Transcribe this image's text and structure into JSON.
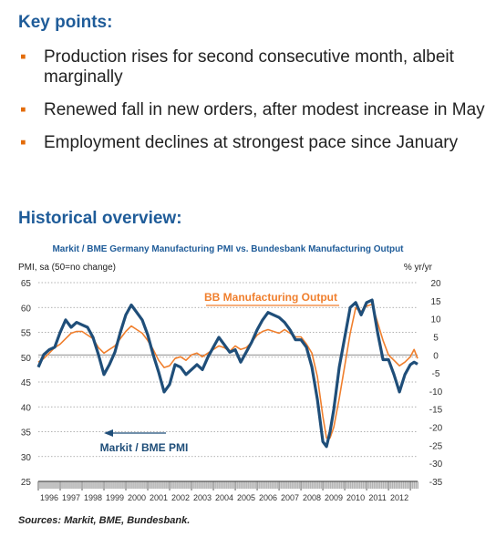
{
  "headings": {
    "key_points": "Key points:",
    "historical": "Historical overview:"
  },
  "bullets": [
    "Production rises for second consecutive month, albeit marginally",
    "Renewed fall in new orders, after modest increase in May",
    "Employment declines at strongest pace since January"
  ],
  "bullet_marker": "▪",
  "colors": {
    "heading": "#1f5c99",
    "marker": "#e36c0a",
    "pmi": "#1f4e79",
    "bb": "#f07f2d",
    "chart_title": "#1f5c99"
  },
  "chart_data": {
    "type": "line",
    "title": "Markit / BME Germany Manufacturing PMI vs. Bundesbank Manufacturing Output",
    "left_axis_label": "PMI, sa (50=no change)",
    "right_axis_label": "% yr/yr",
    "left_ylim": [
      25,
      65
    ],
    "left_ticks": [
      "65",
      "60",
      "55",
      "50",
      "45",
      "40",
      "35",
      "30",
      "25"
    ],
    "right_ylim": [
      -35,
      20
    ],
    "right_ticks": [
      "20",
      "15",
      "10",
      "5",
      "0",
      "-5",
      "-10",
      "-15",
      "-20",
      "-25",
      "-30",
      "-35"
    ],
    "x_ticks": [
      "1996",
      "1997",
      "1998",
      "1999",
      "2000",
      "2001",
      "2002",
      "2003",
      "2004",
      "2005",
      "2006",
      "2007",
      "2008",
      "2009",
      "2010",
      "2011",
      "2012"
    ],
    "x_range": [
      1996.0,
      2013.33
    ],
    "gridlines": "dotted horizontal",
    "series": [
      {
        "name": "Markit / BME PMI",
        "axis": "left",
        "legend_position": "lower-left with left arrow",
        "points": [
          [
            1996.0,
            48.0
          ],
          [
            1996.25,
            50.5
          ],
          [
            1996.5,
            51.5
          ],
          [
            1996.75,
            52.0
          ],
          [
            1997.0,
            55.0
          ],
          [
            1997.25,
            57.5
          ],
          [
            1997.5,
            56.0
          ],
          [
            1997.75,
            57.0
          ],
          [
            1998.0,
            56.5
          ],
          [
            1998.25,
            56.0
          ],
          [
            1998.5,
            54.0
          ],
          [
            1998.75,
            50.5
          ],
          [
            1999.0,
            46.5
          ],
          [
            1999.25,
            48.5
          ],
          [
            1999.5,
            51.0
          ],
          [
            1999.75,
            55.0
          ],
          [
            2000.0,
            58.5
          ],
          [
            2000.25,
            60.5
          ],
          [
            2000.5,
            59.0
          ],
          [
            2000.75,
            57.5
          ],
          [
            2001.0,
            54.5
          ],
          [
            2001.25,
            50.5
          ],
          [
            2001.5,
            47.0
          ],
          [
            2001.75,
            43.0
          ],
          [
            2002.0,
            44.5
          ],
          [
            2002.25,
            48.5
          ],
          [
            2002.5,
            48.0
          ],
          [
            2002.75,
            46.5
          ],
          [
            2003.0,
            47.5
          ],
          [
            2003.25,
            48.5
          ],
          [
            2003.5,
            47.5
          ],
          [
            2003.75,
            50.0
          ],
          [
            2004.0,
            52.0
          ],
          [
            2004.25,
            54.0
          ],
          [
            2004.5,
            52.5
          ],
          [
            2004.75,
            51.0
          ],
          [
            2005.0,
            51.5
          ],
          [
            2005.25,
            49.0
          ],
          [
            2005.5,
            51.0
          ],
          [
            2005.75,
            53.0
          ],
          [
            2006.0,
            55.5
          ],
          [
            2006.25,
            57.5
          ],
          [
            2006.5,
            59.0
          ],
          [
            2006.75,
            58.5
          ],
          [
            2007.0,
            58.0
          ],
          [
            2007.25,
            57.0
          ],
          [
            2007.5,
            55.5
          ],
          [
            2007.75,
            53.5
          ],
          [
            2008.0,
            53.5
          ],
          [
            2008.25,
            52.0
          ],
          [
            2008.5,
            48.0
          ],
          [
            2008.75,
            41.5
          ],
          [
            2009.0,
            33.0
          ],
          [
            2009.17,
            32.0
          ],
          [
            2009.33,
            35.0
          ],
          [
            2009.5,
            39.5
          ],
          [
            2009.75,
            48.0
          ],
          [
            2010.0,
            54.0
          ],
          [
            2010.25,
            60.0
          ],
          [
            2010.5,
            61.0
          ],
          [
            2010.75,
            58.5
          ],
          [
            2011.0,
            61.0
          ],
          [
            2011.25,
            61.5
          ],
          [
            2011.5,
            55.0
          ],
          [
            2011.75,
            49.5
          ],
          [
            2012.0,
            49.5
          ],
          [
            2012.25,
            46.5
          ],
          [
            2012.5,
            43.0
          ],
          [
            2012.75,
            46.5
          ],
          [
            2013.0,
            48.5
          ],
          [
            2013.17,
            49.0
          ],
          [
            2013.33,
            48.6
          ]
        ]
      },
      {
        "name": "BB Manufacturing Output",
        "axis": "right",
        "legend_position": "upper-center",
        "points": [
          [
            1996.0,
            -2.0
          ],
          [
            1996.25,
            -1.0
          ],
          [
            1996.5,
            0.5
          ],
          [
            1996.75,
            2.0
          ],
          [
            1997.0,
            3.0
          ],
          [
            1997.25,
            4.5
          ],
          [
            1997.5,
            6.0
          ],
          [
            1997.75,
            6.5
          ],
          [
            1998.0,
            6.5
          ],
          [
            1998.25,
            5.5
          ],
          [
            1998.5,
            4.5
          ],
          [
            1998.75,
            2.0
          ],
          [
            1999.0,
            0.5
          ],
          [
            1999.25,
            1.5
          ],
          [
            1999.5,
            2.5
          ],
          [
            1999.75,
            4.5
          ],
          [
            2000.0,
            6.5
          ],
          [
            2000.25,
            8.0
          ],
          [
            2000.5,
            7.0
          ],
          [
            2000.75,
            6.0
          ],
          [
            2001.0,
            4.0
          ],
          [
            2001.25,
            1.5
          ],
          [
            2001.5,
            -1.5
          ],
          [
            2001.75,
            -3.5
          ],
          [
            2002.0,
            -3.0
          ],
          [
            2002.25,
            -1.0
          ],
          [
            2002.5,
            -0.5
          ],
          [
            2002.75,
            -1.5
          ],
          [
            2003.0,
            0.0
          ],
          [
            2003.25,
            0.5
          ],
          [
            2003.5,
            -0.5
          ],
          [
            2003.75,
            0.5
          ],
          [
            2004.0,
            1.5
          ],
          [
            2004.25,
            2.5
          ],
          [
            2004.5,
            2.0
          ],
          [
            2004.75,
            1.0
          ],
          [
            2005.0,
            2.5
          ],
          [
            2005.25,
            1.5
          ],
          [
            2005.5,
            2.0
          ],
          [
            2005.75,
            3.5
          ],
          [
            2006.0,
            5.5
          ],
          [
            2006.25,
            6.5
          ],
          [
            2006.5,
            7.0
          ],
          [
            2006.75,
            6.5
          ],
          [
            2007.0,
            6.0
          ],
          [
            2007.25,
            7.0
          ],
          [
            2007.5,
            6.0
          ],
          [
            2007.75,
            5.0
          ],
          [
            2008.0,
            5.0
          ],
          [
            2008.25,
            3.0
          ],
          [
            2008.5,
            0.5
          ],
          [
            2008.75,
            -6.0
          ],
          [
            2009.0,
            -17.0
          ],
          [
            2009.17,
            -23.0
          ],
          [
            2009.33,
            -23.0
          ],
          [
            2009.5,
            -20.0
          ],
          [
            2009.75,
            -12.0
          ],
          [
            2010.0,
            -3.0
          ],
          [
            2010.25,
            6.0
          ],
          [
            2010.5,
            13.0
          ],
          [
            2010.75,
            12.0
          ],
          [
            2011.0,
            13.5
          ],
          [
            2011.25,
            14.0
          ],
          [
            2011.5,
            9.0
          ],
          [
            2011.75,
            4.0
          ],
          [
            2012.0,
            0.0
          ],
          [
            2012.25,
            -1.5
          ],
          [
            2012.5,
            -3.0
          ],
          [
            2012.75,
            -2.0
          ],
          [
            2013.0,
            -0.5
          ],
          [
            2013.17,
            1.5
          ],
          [
            2013.33,
            -1.0
          ]
        ]
      }
    ],
    "source": "Sources: Markit, BME, Bundesbank."
  }
}
